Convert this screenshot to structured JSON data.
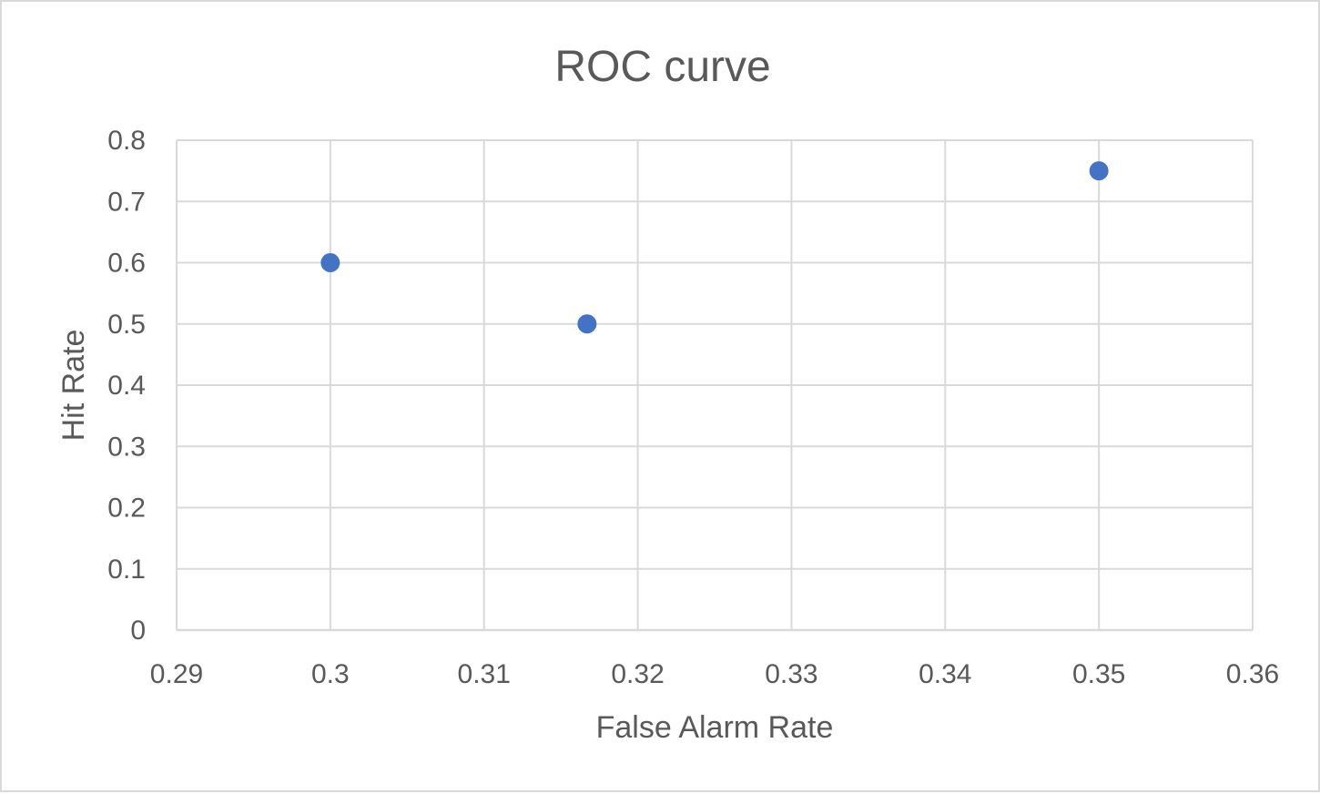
{
  "chart_data": {
    "type": "scatter",
    "title": "ROC curve",
    "xlabel": "False Alarm Rate",
    "ylabel": "Hit Rate",
    "xlim": [
      0.29,
      0.36
    ],
    "ylim": [
      0,
      0.8
    ],
    "xticks": [
      0.29,
      0.3,
      0.31,
      0.32,
      0.33,
      0.34,
      0.35,
      0.36
    ],
    "yticks": [
      0,
      0.1,
      0.2,
      0.3,
      0.4,
      0.5,
      0.6,
      0.7,
      0.8
    ],
    "xtick_labels": [
      "0.29",
      "0.3",
      "0.31",
      "0.32",
      "0.33",
      "0.34",
      "0.35",
      "0.36"
    ],
    "ytick_labels": [
      "0",
      "0.1",
      "0.2",
      "0.3",
      "0.4",
      "0.5",
      "0.6",
      "0.7",
      "0.8"
    ],
    "grid": true,
    "legend": "none",
    "series": [
      {
        "color": "#4472c4",
        "points": [
          {
            "x": 0.3,
            "y": 0.6
          },
          {
            "x": 0.3167,
            "y": 0.5
          },
          {
            "x": 0.35,
            "y": 0.75
          }
        ]
      }
    ]
  }
}
